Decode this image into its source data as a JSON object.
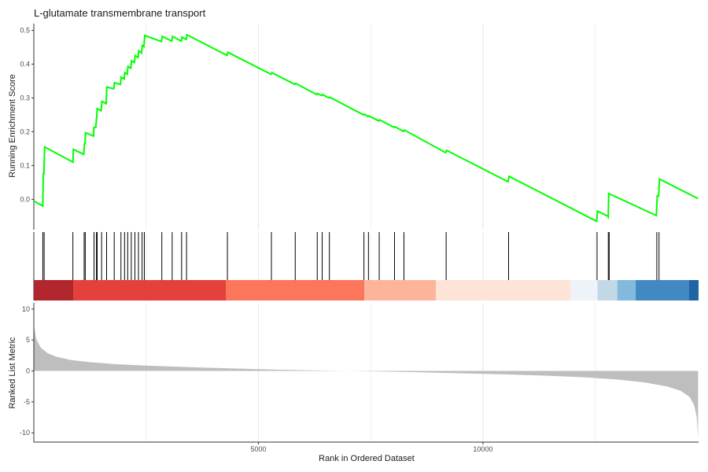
{
  "chart_data": {
    "type": "line",
    "title": "L-glutamate transmembrane transport",
    "x_range": [
      0,
      14800
    ],
    "x_ticks": [
      5000,
      10000
    ],
    "xlabel": "Rank in Ordered Dataset",
    "panels": {
      "es": {
        "ylabel": "Running Enrichment Score",
        "ylim": [
          -0.09,
          0.52
        ],
        "y_ticks": [
          0.0,
          0.1,
          0.2,
          0.3,
          0.4,
          0.5
        ],
        "tick_labels": [
          "0.0",
          "0.1",
          "0.2",
          "0.3",
          "0.4",
          "0.5"
        ],
        "line_color": "#00ff00",
        "points": [
          [
            0,
            -0.005
          ],
          [
            200,
            -0.02
          ],
          [
            210,
            0.075
          ],
          [
            225,
            0.075
          ],
          [
            240,
            0.155
          ],
          [
            870,
            0.11
          ],
          [
            880,
            0.148
          ],
          [
            1110,
            0.133
          ],
          [
            1130,
            0.165
          ],
          [
            1140,
            0.165
          ],
          [
            1150,
            0.197
          ],
          [
            1330,
            0.187
          ],
          [
            1340,
            0.213
          ],
          [
            1380,
            0.213
          ],
          [
            1395,
            0.24
          ],
          [
            1400,
            0.24
          ],
          [
            1410,
            0.268
          ],
          [
            1500,
            0.262
          ],
          [
            1515,
            0.29
          ],
          [
            1610,
            0.283
          ],
          [
            1625,
            0.332
          ],
          [
            1780,
            0.327
          ],
          [
            1795,
            0.345
          ],
          [
            1930,
            0.34
          ],
          [
            1945,
            0.362
          ],
          [
            2010,
            0.356
          ],
          [
            2025,
            0.375
          ],
          [
            2080,
            0.37
          ],
          [
            2095,
            0.393
          ],
          [
            2160,
            0.388
          ],
          [
            2175,
            0.41
          ],
          [
            2240,
            0.405
          ],
          [
            2255,
            0.425
          ],
          [
            2320,
            0.42
          ],
          [
            2335,
            0.44
          ],
          [
            2400,
            0.433
          ],
          [
            2415,
            0.455
          ],
          [
            2450,
            0.452
          ],
          [
            2470,
            0.485
          ],
          [
            2840,
            0.467
          ],
          [
            2860,
            0.482
          ],
          [
            3070,
            0.468
          ],
          [
            3090,
            0.482
          ],
          [
            3280,
            0.468
          ],
          [
            3300,
            0.48
          ],
          [
            3390,
            0.473
          ],
          [
            3410,
            0.487
          ],
          [
            4300,
            0.426
          ],
          [
            4320,
            0.435
          ],
          [
            5280,
            0.37
          ],
          [
            5300,
            0.375
          ],
          [
            5810,
            0.34
          ],
          [
            5830,
            0.343
          ],
          [
            6300,
            0.31
          ],
          [
            6320,
            0.313
          ],
          [
            6410,
            0.307
          ],
          [
            6430,
            0.31
          ],
          [
            6570,
            0.3
          ],
          [
            6590,
            0.302
          ],
          [
            7340,
            0.25
          ],
          [
            7360,
            0.252
          ],
          [
            7440,
            0.245
          ],
          [
            7460,
            0.247
          ],
          [
            7680,
            0.232
          ],
          [
            7700,
            0.235
          ],
          [
            8020,
            0.213
          ],
          [
            8040,
            0.215
          ],
          [
            8230,
            0.201
          ],
          [
            8250,
            0.205
          ],
          [
            9170,
            0.138
          ],
          [
            9190,
            0.145
          ],
          [
            10560,
            0.052
          ],
          [
            10580,
            0.068
          ],
          [
            12530,
            -0.065
          ],
          [
            12550,
            -0.035
          ],
          [
            12780,
            -0.05
          ],
          [
            12790,
            -0.052
          ],
          [
            12800,
            0.017
          ],
          [
            13860,
            -0.048
          ],
          [
            13880,
            0.01
          ],
          [
            13910,
            0.01
          ],
          [
            13930,
            0.06
          ],
          [
            14790,
            0.002
          ]
        ]
      },
      "hits": {
        "positions": [
          200,
          230,
          870,
          1120,
          1145,
          1340,
          1395,
          1410,
          1510,
          1620,
          1790,
          1940,
          2020,
          2090,
          2170,
          2250,
          2330,
          2410,
          2460,
          2850,
          3080,
          3290,
          3400,
          4310,
          5290,
          5820,
          6310,
          6420,
          6580,
          7350,
          7450,
          7690,
          8030,
          8240,
          9180,
          10570,
          12540,
          12790,
          12810,
          13870,
          13920
        ]
      },
      "color_bar": {
        "segments": [
          {
            "from": 0,
            "to": 870,
            "color": "#b2262d"
          },
          {
            "from": 870,
            "to": 4280,
            "color": "#e4413c"
          },
          {
            "from": 4280,
            "to": 7350,
            "color": "#fb765a"
          },
          {
            "from": 7350,
            "to": 8950,
            "color": "#fdb49a"
          },
          {
            "from": 8950,
            "to": 11950,
            "color": "#fde3d8"
          },
          {
            "from": 11950,
            "to": 12550,
            "color": "#eef3fa"
          },
          {
            "from": 12550,
            "to": 12990,
            "color": "#c2d8e7"
          },
          {
            "from": 12990,
            "to": 13400,
            "color": "#82b9dd"
          },
          {
            "from": 13400,
            "to": 14590,
            "color": "#4289c3"
          },
          {
            "from": 14590,
            "to": 14800,
            "color": "#1f64a5"
          }
        ]
      },
      "metric": {
        "ylabel": "Ranked List Metric",
        "ylim": [
          -11.5,
          11.0
        ],
        "y_ticks": [
          10,
          5,
          0,
          -5,
          -10
        ],
        "tick_labels": [
          "10",
          "5",
          "0",
          "-5",
          "-10"
        ],
        "fill_color": "#bebebe",
        "curve": [
          [
            0,
            7.5
          ],
          [
            50,
            5.2
          ],
          [
            150,
            3.8
          ],
          [
            300,
            2.9
          ],
          [
            500,
            2.3
          ],
          [
            800,
            1.8
          ],
          [
            1200,
            1.45
          ],
          [
            1800,
            1.1
          ],
          [
            2500,
            0.85
          ],
          [
            3500,
            0.6
          ],
          [
            4500,
            0.38
          ],
          [
            5500,
            0.2
          ],
          [
            6500,
            0.05
          ],
          [
            7400,
            -0.05
          ],
          [
            8500,
            -0.2
          ],
          [
            9500,
            -0.38
          ],
          [
            10500,
            -0.55
          ],
          [
            11500,
            -0.8
          ],
          [
            12300,
            -1.05
          ],
          [
            13000,
            -1.4
          ],
          [
            13600,
            -1.85
          ],
          [
            14100,
            -2.5
          ],
          [
            14400,
            -3.2
          ],
          [
            14600,
            -4.2
          ],
          [
            14700,
            -5.5
          ],
          [
            14760,
            -7.5
          ],
          [
            14790,
            -10.8
          ]
        ]
      }
    }
  }
}
